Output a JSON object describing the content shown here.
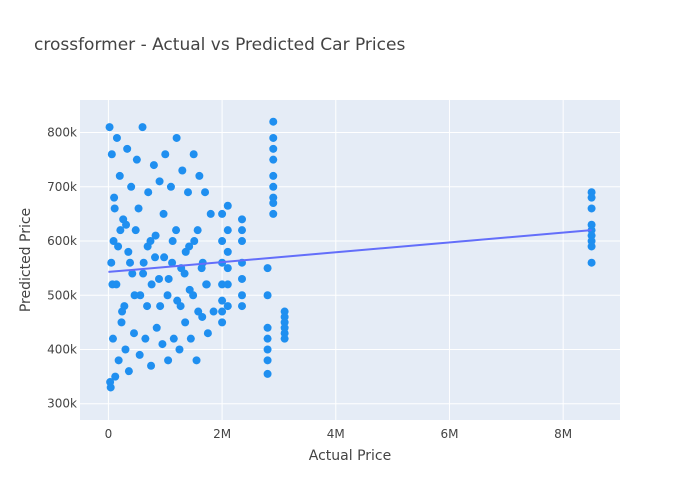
{
  "chart_data": {
    "type": "scatter",
    "title": "crossformer - Actual vs Predicted Car Prices",
    "xlabel": "Actual Price",
    "ylabel": "Predicted Price",
    "xlim": [
      -500000,
      9000000
    ],
    "ylim": [
      270000,
      860000
    ],
    "x_ticks": [
      0,
      2000000,
      4000000,
      6000000,
      8000000
    ],
    "x_tick_labels": [
      "0",
      "2M",
      "4M",
      "6M",
      "8M"
    ],
    "y_ticks": [
      300000,
      400000,
      500000,
      600000,
      700000,
      800000
    ],
    "y_tick_labels": [
      "300k",
      "400k",
      "500k",
      "600k",
      "700k",
      "800k"
    ],
    "grid": true,
    "legend": "none",
    "colors": {
      "points": "#1f8ff0",
      "trend": "#636efa",
      "plot_bg": "#e5ecf6",
      "grid": "#ffffff"
    },
    "series": [
      {
        "type": "scatter",
        "x": [
          20000,
          40000,
          60000,
          80000,
          100000,
          120000,
          150000,
          180000,
          200000,
          230000,
          260000,
          300000,
          330000,
          360000,
          400000,
          450000,
          500000,
          550000,
          600000,
          650000,
          700000,
          750000,
          800000,
          850000,
          900000,
          950000,
          1000000,
          1050000,
          1100000,
          1150000,
          1200000,
          1250000,
          1300000,
          1350000,
          1400000,
          1450000,
          1500000,
          1550000,
          1600000,
          1650000,
          1700000,
          1750000,
          1800000,
          1850000,
          50000,
          90000,
          140000,
          210000,
          280000,
          350000,
          420000,
          480000,
          560000,
          620000,
          690000,
          760000,
          830000,
          910000,
          980000,
          1060000,
          1130000,
          1210000,
          1280000,
          1360000,
          1430000,
          1510000,
          1580000,
          1660000,
          1730000,
          30000,
          70000,
          110000,
          170000,
          240000,
          310000,
          380000,
          460000,
          530000,
          610000,
          680000,
          740000,
          820000,
          890000,
          970000,
          1040000,
          1120000,
          1190000,
          1270000,
          1340000,
          1420000,
          1490000,
          1570000,
          1640000,
          1720000,
          2000000,
          2000000,
          2000000,
          2000000,
          2000000,
          2000000,
          2000000,
          2100000,
          2100000,
          2100000,
          2100000,
          2100000,
          2100000,
          2350000,
          2350000,
          2350000,
          2350000,
          2350000,
          2350000,
          2350000,
          2800000,
          2800000,
          2800000,
          2800000,
          2800000,
          2800000,
          2800000,
          2900000,
          2900000,
          2900000,
          2900000,
          2900000,
          2900000,
          2900000,
          2900000,
          2900000,
          3100000,
          3100000,
          3100000,
          3100000,
          3100000,
          3100000,
          8500000,
          8500000,
          8500000,
          8500000,
          8500000,
          8500000,
          8500000,
          8500000,
          8500000
        ],
        "y": [
          810000,
          330000,
          760000,
          420000,
          680000,
          350000,
          790000,
          380000,
          720000,
          450000,
          640000,
          400000,
          770000,
          360000,
          700000,
          430000,
          750000,
          390000,
          810000,
          420000,
          690000,
          370000,
          740000,
          440000,
          710000,
          410000,
          760000,
          380000,
          700000,
          420000,
          790000,
          400000,
          730000,
          450000,
          690000,
          420000,
          760000,
          380000,
          720000,
          460000,
          690000,
          430000,
          650000,
          470000,
          560000,
          600000,
          520000,
          620000,
          480000,
          580000,
          540000,
          620000,
          500000,
          560000,
          590000,
          520000,
          610000,
          480000,
          570000,
          530000,
          600000,
          490000,
          550000,
          580000,
          510000,
          600000,
          470000,
          560000,
          520000,
          340000,
          520000,
          660000,
          590000,
          470000,
          630000,
          560000,
          500000,
          660000,
          540000,
          480000,
          600000,
          570000,
          530000,
          650000,
          500000,
          560000,
          620000,
          480000,
          540000,
          590000,
          500000,
          620000,
          550000,
          520000,
          650000,
          600000,
          560000,
          520000,
          490000,
          470000,
          450000,
          665000,
          620000,
          580000,
          550000,
          520000,
          480000,
          640000,
          620000,
          600000,
          560000,
          530000,
          500000,
          480000,
          550000,
          500000,
          440000,
          420000,
          400000,
          380000,
          355000,
          820000,
          790000,
          770000,
          750000,
          720000,
          700000,
          680000,
          670000,
          650000,
          470000,
          460000,
          450000,
          440000,
          430000,
          420000,
          690000,
          680000,
          660000,
          630000,
          620000,
          610000,
          600000,
          590000,
          560000
        ]
      }
    ],
    "trend_line": {
      "x": [
        0,
        8500000
      ],
      "y": [
        543000,
        620000
      ]
    }
  }
}
